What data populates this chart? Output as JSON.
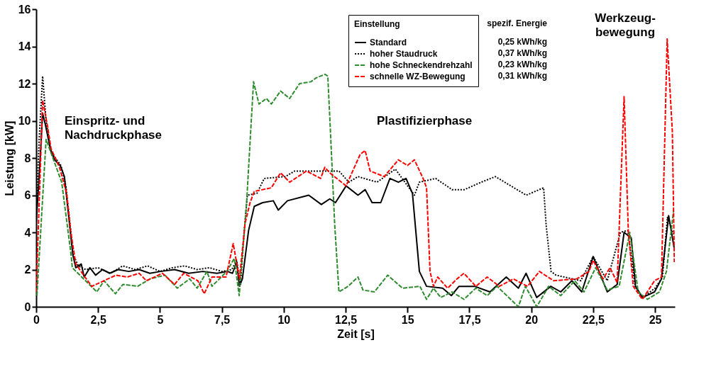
{
  "chart_data": {
    "type": "line",
    "xlabel": "Zeit [s]",
    "ylabel": "Leistung [kW]",
    "legend_title": "Einstellung",
    "legend": "top right",
    "grid": false,
    "marker": "none",
    "xlim": [
      0,
      25.8
    ],
    "xticks": [
      0,
      {
        "value": 2.5,
        "label": "2,5"
      },
      5,
      {
        "value": 7.5,
        "label": "7,5"
      },
      10,
      {
        "value": 12.5,
        "label": "12,5"
      },
      15,
      {
        "value": 17.5,
        "label": "17,5"
      },
      20,
      {
        "value": 22.5,
        "label": "22,5"
      },
      25
    ],
    "ylim": [
      0,
      16
    ],
    "yticks": [
      0,
      2,
      4,
      6,
      8,
      10,
      12,
      14,
      16
    ],
    "annotations": [
      "Einspritz- und\nNachdruckphase",
      "Plastifizierphase",
      "Werkzeug-\nbewegung",
      "spezif. Energie",
      "0,25 kWh/kg",
      "0,37 kWh/kg",
      "0,23 kWh/kg",
      "0,31 kWh/kg"
    ],
    "series": [
      {
        "name": "Standard",
        "color": "#000000",
        "line_style": "solid",
        "x": [
          0,
          0.11,
          0.26,
          0.37,
          0.57,
          0.74,
          0.97,
          1.14,
          1.31,
          1.48,
          1.6,
          1.82,
          1.94,
          2.17,
          2.4,
          2.68,
          2.97,
          3.31,
          3.74,
          4.16,
          4.59,
          5.02,
          5.59,
          6.16,
          6.73,
          7.3,
          7.73,
          7.93,
          8.1,
          8.21,
          8.33,
          8.58,
          8.81,
          9.15,
          9.58,
          9.78,
          10.15,
          11.01,
          11.52,
          11.86,
          12.09,
          12.52,
          13.0,
          13.29,
          13.57,
          13.92,
          14.29,
          14.63,
          14.94,
          15.2,
          15.48,
          15.77,
          16.42,
          16.77,
          17.08,
          17.71,
          18.33,
          18.99,
          19.48,
          19.79,
          20.22,
          20.79,
          21.19,
          21.64,
          22.04,
          22.5,
          23.07,
          23.47,
          23.75,
          24.04,
          24.21,
          24.49,
          24.98,
          25.26,
          25.55,
          25.78
        ],
        "values": [
          4.5,
          6.8,
          10.4,
          9.8,
          8.5,
          7.9,
          7.6,
          7.0,
          4.9,
          2.8,
          2.1,
          2.3,
          1.6,
          2.1,
          1.7,
          2.0,
          1.8,
          2.0,
          1.9,
          2.0,
          1.8,
          1.9,
          2.0,
          1.8,
          1.9,
          1.8,
          1.9,
          1.8,
          2.4,
          1.1,
          1.5,
          4.1,
          5.4,
          5.6,
          5.7,
          5.2,
          5.7,
          6.0,
          5.5,
          5.8,
          5.6,
          6.5,
          6.0,
          6.3,
          5.6,
          5.6,
          6.9,
          6.7,
          6.9,
          6.1,
          1.9,
          1.1,
          1.0,
          0.6,
          1.1,
          1.1,
          0.8,
          1.6,
          1.0,
          1.8,
          0.5,
          1.1,
          0.8,
          1.4,
          0.8,
          2.7,
          0.8,
          1.2,
          4.0,
          3.7,
          1.1,
          0.5,
          0.8,
          1.5,
          4.9,
          3.1
        ]
      },
      {
        "name": "hoher Staudruck",
        "color": "#000000",
        "line_style": "dotted",
        "x": [
          0,
          0.12,
          0.26,
          0.4,
          0.6,
          1.0,
          1.2,
          1.5,
          1.7,
          2.0,
          2.5,
          3.0,
          3.5,
          4.0,
          4.5,
          5.0,
          5.5,
          6.0,
          6.5,
          7.0,
          7.5,
          7.9,
          8.1,
          8.25,
          8.4,
          8.53,
          8.92,
          9.21,
          10.07,
          10.44,
          11.09,
          12.23,
          12.63,
          13.0,
          13.77,
          14.51,
          15.28,
          15.48,
          16.14,
          16.8,
          17.3,
          17.98,
          18.55,
          19.8,
          20.5,
          20.6,
          20.8,
          21.0,
          22.0,
          22.5,
          23.07,
          23.6,
          23.9,
          24.2,
          24.5,
          25.0,
          25.3,
          25.5,
          25.75
        ],
        "values": [
          5,
          9,
          12.4,
          10,
          8.3,
          7.6,
          6.5,
          2.8,
          2.2,
          2.0,
          2.1,
          1.8,
          2.2,
          2.0,
          2.2,
          1.9,
          2.1,
          2.2,
          2.0,
          2.1,
          1.9,
          2.0,
          2.5,
          1.2,
          4.0,
          6.0,
          6.1,
          6.9,
          7.0,
          7.3,
          7.3,
          7.3,
          6.7,
          7.0,
          6.7,
          7.4,
          6.0,
          6.7,
          6.9,
          6.3,
          6.3,
          6.7,
          7.0,
          6.0,
          6.4,
          4.4,
          1.9,
          1.7,
          1.4,
          2.7,
          1.4,
          4.0,
          4.1,
          1.1,
          0.5,
          1.0,
          1.6,
          4.8,
          3.9
        ]
      },
      {
        "name": "hohe Schneckendrehzahl",
        "color": "#2e8b2e",
        "line_style": "dashed",
        "x": [
          0.03,
          0.4,
          1.03,
          1.4,
          1.46,
          2.45,
          2.74,
          3.2,
          3.5,
          4.1,
          4.6,
          5.2,
          5.7,
          6.2,
          6.5,
          6.9,
          7.1,
          7.7,
          8.0,
          8.2,
          8.5,
          8.78,
          9.0,
          9.3,
          9.5,
          9.87,
          10.24,
          10.64,
          11.1,
          11.3,
          11.67,
          11.78,
          11.86,
          12.06,
          12.23,
          12.6,
          13.0,
          13.2,
          13.66,
          14.2,
          14.8,
          15.5,
          15.77,
          16.05,
          16.34,
          16.8,
          17.28,
          17.76,
          18.22,
          18.62,
          19.48,
          19.76,
          20.22,
          20.7,
          21.19,
          21.76,
          22.13,
          22.6,
          23.07,
          23.55,
          23.98,
          24.32,
          24.69,
          25.18,
          25.46,
          25.75
        ],
        "values": [
          0.6,
          9.0,
          6.7,
          2.9,
          2.1,
          0.8,
          1.4,
          0.7,
          1.2,
          1.1,
          1.5,
          1.7,
          1.0,
          1.5,
          1.0,
          1.9,
          1.1,
          1.9,
          2.6,
          0.6,
          5.6,
          12.1,
          10.9,
          11.2,
          10.9,
          11.6,
          11.2,
          12.0,
          12.1,
          12.3,
          12.5,
          12.4,
          10.2,
          4.4,
          0.8,
          1.1,
          1.6,
          0.9,
          0.8,
          1.7,
          1.0,
          1.1,
          0.4,
          1.0,
          0.5,
          0.8,
          0.4,
          1.0,
          0.6,
          1.1,
          0.0,
          1.1,
          0.0,
          1.1,
          0.6,
          1.4,
          0.8,
          2.1,
          0.9,
          1.1,
          4.0,
          0.8,
          0.4,
          0.8,
          1.9,
          5.2
        ]
      },
      {
        "name": "schnelle WZ-Bewegung",
        "color": "#ff0000",
        "line_style": "dashed",
        "x": [
          0,
          0.26,
          0.46,
          0.6,
          0.94,
          1.23,
          1.4,
          1.6,
          1.97,
          2.25,
          2.74,
          3.22,
          3.68,
          4.16,
          4.45,
          5.1,
          5.59,
          5.96,
          6.53,
          6.79,
          7.1,
          7.67,
          7.96,
          8.21,
          8.44,
          8.64,
          8.81,
          9.5,
          9.87,
          10.24,
          10.92,
          11.49,
          11.66,
          11.86,
          12.52,
          13.09,
          13.29,
          13.49,
          14.06,
          14.63,
          15.0,
          15.28,
          15.63,
          15.77,
          15.91,
          16.05,
          16.22,
          16.62,
          17.0,
          17.28,
          17.76,
          18.22,
          18.71,
          19.28,
          19.85,
          20.33,
          20.9,
          21.84,
          22.33,
          22.5,
          22.9,
          23.18,
          23.47,
          23.75,
          23.92,
          24.12,
          24.49,
          24.98,
          25.26,
          25.49,
          25.7,
          25.78
        ],
        "values": [
          0.8,
          11.1,
          9.7,
          8.5,
          7.5,
          6.1,
          4.0,
          2.3,
          1.6,
          1.1,
          1.4,
          1.7,
          1.6,
          1.8,
          1.4,
          1.8,
          1.2,
          1.8,
          1.4,
          0.7,
          1.6,
          1.6,
          3.4,
          1.5,
          4.5,
          5.6,
          6.2,
          6.4,
          7.2,
          6.7,
          7.3,
          6.9,
          7.5,
          7.2,
          6.5,
          8.2,
          8.4,
          7.3,
          7.0,
          7.9,
          7.6,
          7.9,
          6.9,
          6.4,
          1.9,
          1.1,
          1.6,
          1.0,
          1.5,
          1.8,
          1.1,
          1.6,
          1.1,
          1.5,
          1.1,
          1.9,
          1.4,
          1.5,
          1.9,
          2.5,
          1.5,
          2.1,
          1.3,
          11.3,
          4.1,
          1.1,
          0.4,
          1.4,
          1.6,
          14.4,
          9.4,
          2.4
        ]
      }
    ]
  }
}
